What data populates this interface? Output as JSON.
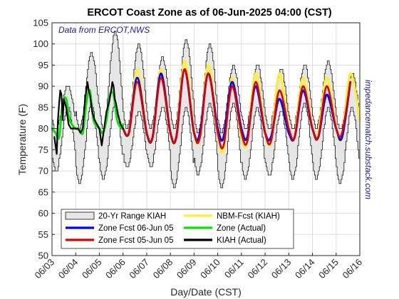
{
  "chart_data": {
    "type": "line",
    "title": "ERCOT Coast Zone as of 06-Jun-2025 04:00 (CST)",
    "xlabel": "Day/Date (CST)",
    "ylabel": "Temperature (F)",
    "source_note": "Data from ERCOT,NWS",
    "side_note": "impedancematch.substack.com",
    "ylim": [
      50,
      105
    ],
    "yticks": [
      50,
      55,
      60,
      65,
      70,
      75,
      80,
      85,
      90,
      95,
      100,
      105
    ],
    "xlim": [
      0,
      13
    ],
    "xtick_labels": [
      "06/03",
      "06/04",
      "06/05",
      "06/06",
      "06/07",
      "06/08",
      "06/09",
      "06/10",
      "06/11",
      "06/12",
      "06/13",
      "06/14",
      "06/15",
      "06/16"
    ],
    "grid": true,
    "legend_position": "bottom-left",
    "legend": [
      {
        "label": "20-Yr Range KIAH",
        "kind": "patch",
        "color": "#e6e6e6"
      },
      {
        "label": "NBM-Fcst (KIAH)",
        "kind": "line",
        "color": "#ffee33"
      },
      {
        "label": "Zone Fcst 06-Jun 05",
        "kind": "line",
        "color": "#0000ff"
      },
      {
        "label": "Zone (Actual)",
        "kind": "line",
        "color": "#00e600"
      },
      {
        "label": "Zone Fcst 05-Jun 05",
        "kind": "line",
        "color": "#e00000"
      },
      {
        "label": "KIAH (Actual)",
        "kind": "line",
        "color": "#000000"
      }
    ],
    "range_kiah": {
      "name": "20-Yr Range KIAH",
      "days": [
        0,
        1,
        2,
        3,
        4,
        5,
        6,
        7,
        8,
        9,
        10,
        11,
        12
      ],
      "max_high": [
        90,
        98,
        103,
        100,
        97,
        101,
        100,
        95,
        95,
        94,
        95,
        96,
        93
      ],
      "min_high": [
        85,
        86,
        86,
        84,
        85,
        85,
        86,
        86,
        85,
        84,
        86,
        85,
        85
      ],
      "max_low": [
        80,
        80,
        80,
        80,
        80,
        80,
        79,
        79,
        80,
        80,
        80,
        80,
        80
      ],
      "min_low": [
        70,
        67,
        68,
        71,
        71,
        66,
        69,
        66,
        68,
        69,
        68,
        68,
        67
      ]
    },
    "series": [
      {
        "name": "NBM-Fcst (KIAH)",
        "color": "#ffee33",
        "x": [
          3.0,
          3.25,
          3.6,
          4.0,
          4.25,
          4.6,
          5.0,
          5.25,
          5.6,
          6.0,
          6.25,
          6.6,
          7.0,
          7.25,
          7.6,
          8.0,
          8.25,
          8.6,
          9.0,
          9.25,
          9.6,
          10.0,
          10.25,
          10.6,
          11.0,
          11.25,
          11.6,
          12.0,
          12.25,
          12.6,
          13.0
        ],
        "values": [
          80,
          79,
          94,
          79,
          78,
          94,
          79,
          78,
          96,
          79,
          78,
          95,
          79,
          75,
          92,
          78,
          77,
          93,
          79,
          77,
          93,
          80,
          78,
          92,
          80,
          79,
          92,
          80,
          78,
          93,
          82
        ]
      },
      {
        "name": "Zone Fcst 06-Jun 05",
        "color": "#0000ff",
        "x": [
          3.0,
          3.25,
          3.6,
          4.0,
          4.25,
          4.6,
          5.0,
          5.25,
          5.6,
          6.0,
          6.25,
          6.6,
          7.0,
          7.25,
          7.6,
          8.0,
          8.25,
          8.6,
          9.0,
          9.25,
          9.6,
          10.0,
          10.25,
          10.6,
          11.0,
          11.25,
          11.6,
          12.0,
          12.25,
          12.6
        ],
        "values": [
          80,
          79,
          92,
          79,
          78,
          93,
          79,
          78,
          94,
          79,
          79,
          93,
          80,
          78,
          91,
          80,
          78,
          90,
          79,
          78,
          87,
          79,
          78,
          89,
          80,
          78,
          88,
          80,
          78,
          91
        ]
      },
      {
        "name": "Zone Fcst 05-Jun 05",
        "color": "#e00000",
        "x": [
          3.0,
          3.25,
          3.6,
          4.0,
          4.25,
          4.6,
          5.0,
          5.25,
          5.6,
          6.0,
          6.25,
          6.6,
          7.0,
          7.25,
          7.6,
          8.0,
          8.25,
          8.6,
          9.0,
          9.25,
          9.6,
          10.0,
          10.25,
          10.6,
          11.0,
          11.25,
          11.6,
          12.0,
          12.25,
          12.6
        ],
        "values": [
          80,
          79,
          91,
          79,
          78,
          92,
          79,
          78,
          94,
          79,
          78,
          93,
          79,
          76,
          90,
          79,
          77,
          91,
          79,
          77,
          89,
          80,
          78,
          90,
          80,
          78,
          90,
          80,
          79,
          91
        ]
      },
      {
        "name": "Zone (Actual)",
        "color": "#00e600",
        "x": [
          0.0,
          0.15,
          0.3,
          0.45,
          0.6,
          0.75,
          1.0,
          1.15,
          1.3,
          1.45,
          1.6,
          1.75,
          2.0,
          2.15,
          2.3,
          2.45,
          2.6,
          2.75,
          2.95,
          3.0
        ],
        "values": [
          80,
          79,
          78,
          86,
          87,
          82,
          80,
          80,
          79,
          86,
          89,
          82,
          80,
          79,
          82,
          88,
          88,
          82,
          80,
          81
        ]
      },
      {
        "name": "KIAH (Actual)",
        "color": "#000000",
        "x": [
          0.1,
          0.2,
          0.25,
          0.3,
          0.35,
          0.4,
          0.45,
          0.5,
          0.55,
          0.6,
          0.65,
          0.7,
          0.8,
          1.0,
          1.1,
          1.2,
          1.3,
          1.35,
          1.4,
          1.45,
          1.5,
          1.55,
          1.6,
          1.65,
          1.7,
          1.8,
          2.0,
          2.05,
          2.1,
          2.2,
          2.3,
          2.4,
          2.5,
          2.55,
          2.6,
          2.65,
          2.7,
          2.8,
          2.9,
          3.0
        ],
        "values": [
          78,
          74,
          82,
          86,
          89,
          88,
          82,
          87,
          86,
          85,
          83,
          81,
          80,
          80,
          80,
          79,
          80,
          84,
          87,
          89,
          91,
          89,
          88,
          86,
          84,
          82,
          80,
          78,
          76,
          80,
          84,
          86,
          89,
          91,
          90,
          87,
          86,
          83,
          81,
          80
        ]
      }
    ]
  }
}
